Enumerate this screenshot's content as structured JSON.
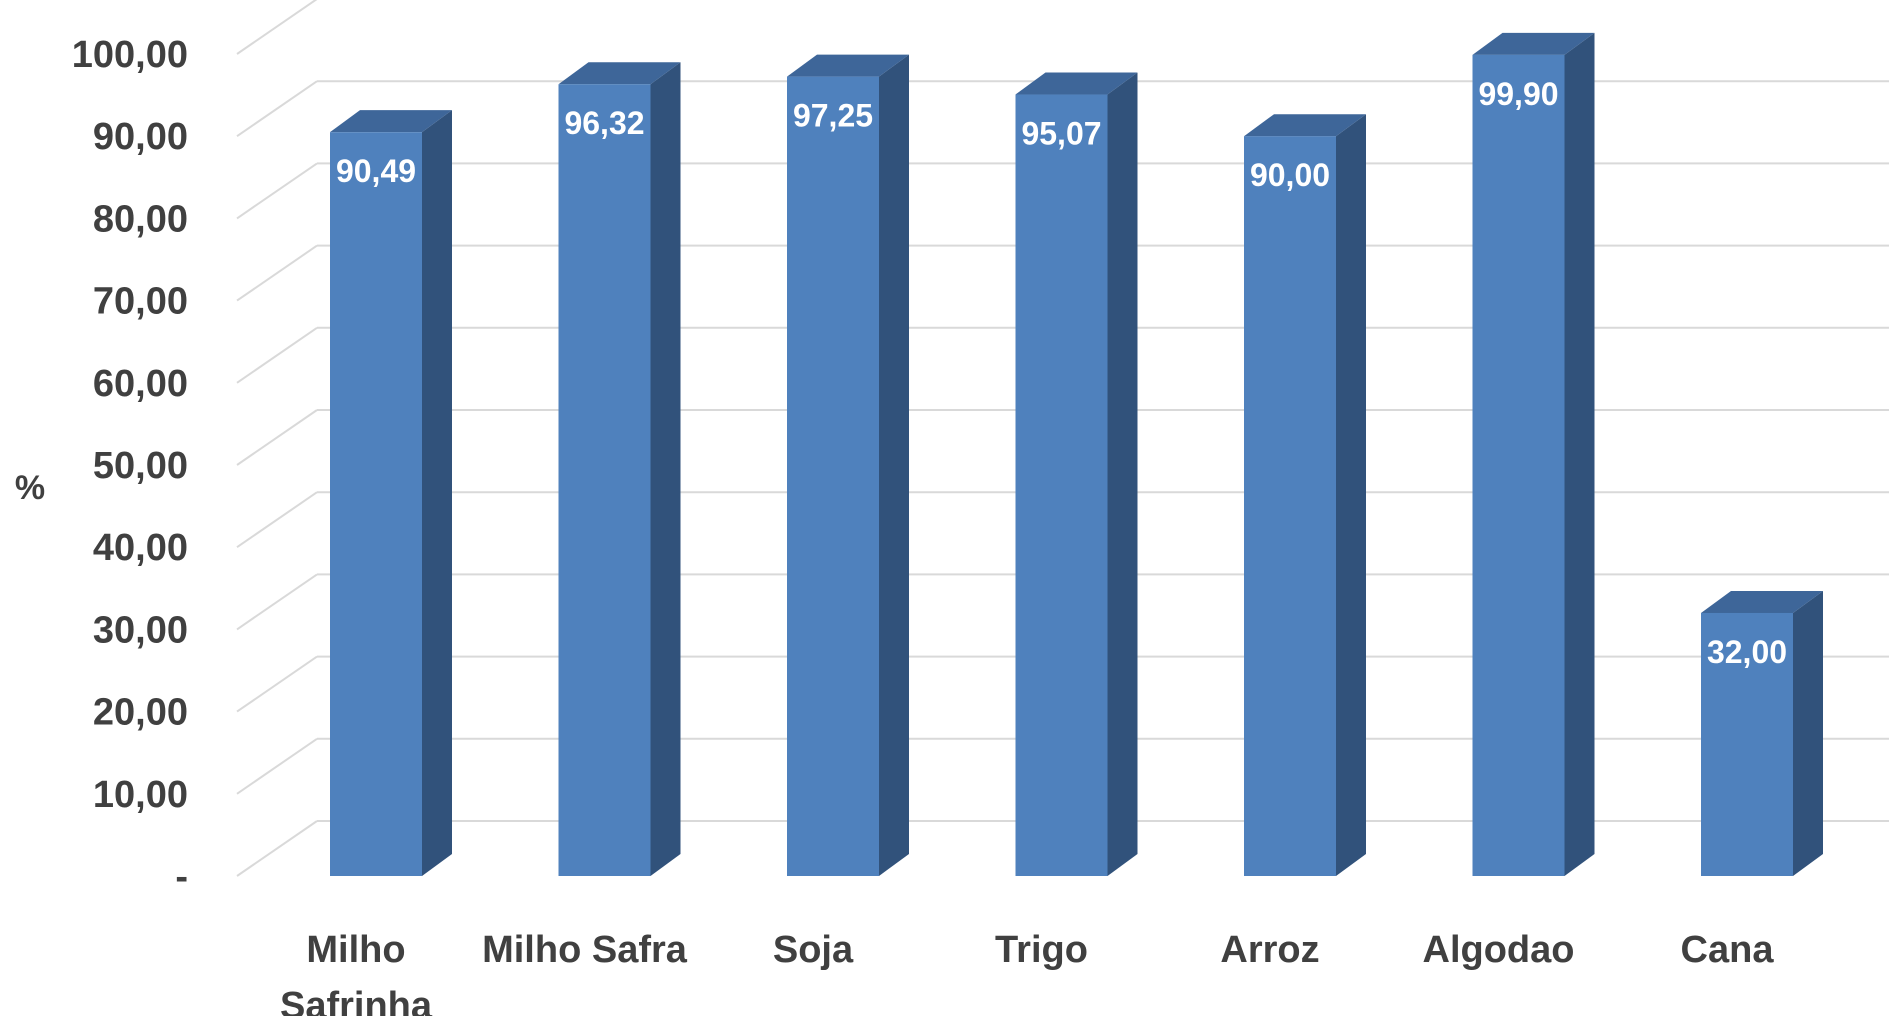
{
  "chart_data": {
    "type": "bar",
    "style": "3d-column",
    "categories": [
      "Milho Safrinha",
      "Milho Safra",
      "Soja",
      "Trigo",
      "Arroz",
      "Algodao",
      "Cana"
    ],
    "values": [
      90.49,
      96.32,
      97.25,
      95.07,
      90.0,
      99.9,
      32.0
    ],
    "data_labels": [
      "90,49",
      "96,32",
      "97,25",
      "95,07",
      "90,00",
      "99,90",
      "32,00"
    ],
    "y_tick_labels": [
      "-",
      "10,00",
      "20,00",
      "30,00",
      "40,00",
      "50,00",
      "60,00",
      "70,00",
      "80,00",
      "90,00",
      "100,00"
    ],
    "ylabel": "%",
    "xlabel": "",
    "title": "",
    "ylim": [
      0,
      100
    ],
    "grid": true,
    "legend": "none",
    "colors": {
      "bar_front": "#4f81bd",
      "bar_side": "#31527b",
      "bar_top": "#3e6699",
      "grid": "#d9d9d9",
      "text": "#404040",
      "data_label": "#ffffff"
    }
  }
}
